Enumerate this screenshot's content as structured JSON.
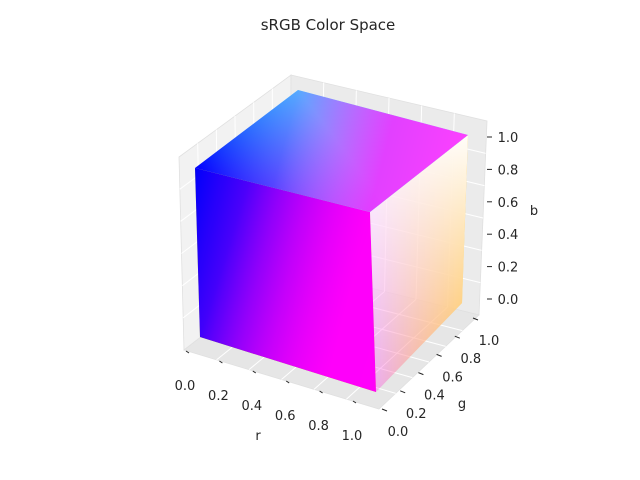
{
  "chart_data": {
    "type": "scatter3d",
    "title": "sRGB Color Space",
    "xlabel": "r",
    "ylabel": "g",
    "zlabel": "b",
    "xlim": [
      0,
      1
    ],
    "ylim": [
      0,
      1
    ],
    "zlim": [
      0,
      1
    ],
    "xticks": [
      "0.0",
      "0.2",
      "0.4",
      "0.6",
      "0.8",
      "1.0"
    ],
    "yticks": [
      "0.0",
      "0.2",
      "0.4",
      "0.6",
      "0.8",
      "1.0"
    ],
    "zticks": [
      "0.0",
      "0.2",
      "0.4",
      "0.6",
      "0.8",
      "1.0"
    ],
    "grid": true,
    "corners": [
      {
        "r": 0,
        "g": 0,
        "b": 0,
        "color": "#000000"
      },
      {
        "r": 1,
        "g": 0,
        "b": 0,
        "color": "#ff0000"
      },
      {
        "r": 0,
        "g": 0,
        "b": 1,
        "color": "#0000ff"
      },
      {
        "r": 1,
        "g": 0,
        "b": 1,
        "color": "#ff00ff"
      },
      {
        "r": 1,
        "g": 1,
        "b": 0,
        "color": "#ffff00"
      },
      {
        "r": 1,
        "g": 1,
        "b": 1,
        "color": "#ffffff"
      },
      {
        "r": 0,
        "g": 1,
        "b": 1,
        "color": "#00ffff"
      }
    ]
  }
}
